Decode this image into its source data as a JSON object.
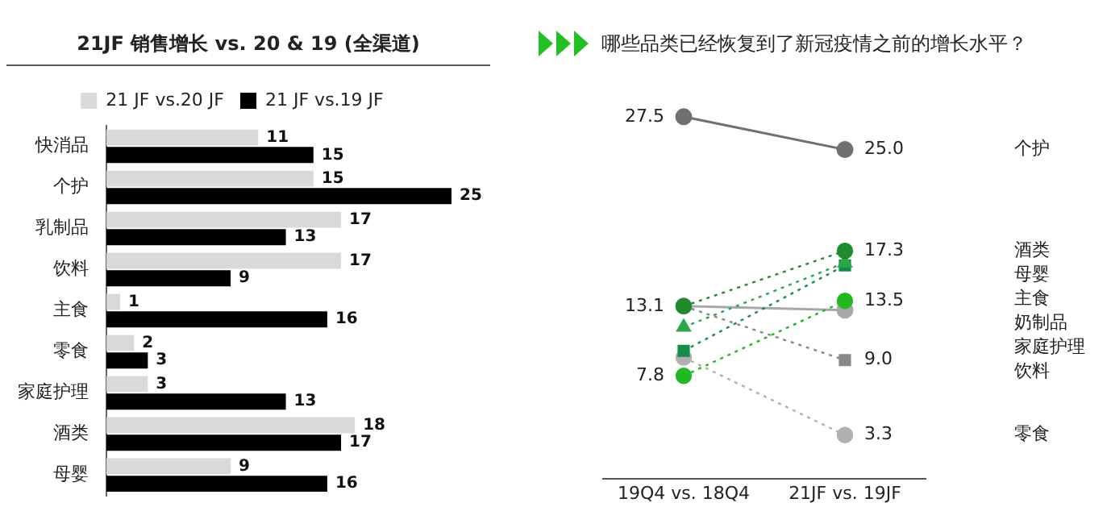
{
  "chart_data": [
    {
      "type": "bar",
      "title": "21JF 销售增长 vs. 20 & 19 (全渠道)",
      "orientation": "horizontal",
      "categories": [
        "快消品",
        "个护",
        "乳制品",
        "饮料",
        "主食",
        "零食",
        "家庭护理",
        "酒类",
        "母婴"
      ],
      "series": [
        {
          "name": "21 JF vs.20 JF",
          "color": "#d9d9d9",
          "values": [
            11,
            15,
            17,
            17,
            1,
            2,
            3,
            18,
            9
          ]
        },
        {
          "name": "21 JF vs.19 JF",
          "color": "#000000",
          "values": [
            15,
            25,
            13,
            9,
            16,
            3,
            13,
            17,
            16
          ]
        }
      ],
      "data_labels": true,
      "legend": "top",
      "grid": false,
      "tick_labels": "y"
    },
    {
      "type": "line",
      "title": "哪些品类已经恢复到了新冠疫情之前的增长水平？",
      "categories": [
        "19Q4 vs. 18Q4",
        "21JF vs. 19JF"
      ],
      "series": [
        {
          "name": "个护",
          "color": "#707070",
          "values": [
            27.5,
            25.0
          ],
          "value_labels": [
            "27.5",
            "25.0"
          ],
          "marker": "circle",
          "line_style": "solid"
        },
        {
          "name": "酒类",
          "color": "#1f8a2e",
          "values": [
            13.1,
            17.3
          ],
          "value_labels": [
            "13.1",
            "17.3"
          ],
          "marker": "circle",
          "line_style": "dotted"
        },
        {
          "name": "母婴",
          "color": "#2aa84a",
          "values": [
            11.5,
            16.4
          ],
          "marker": "triangle",
          "line_style": "dotted"
        },
        {
          "name": "主食",
          "color": "#168c4c",
          "values": [
            9.7,
            16.2
          ],
          "marker": "square",
          "line_style": "dotted"
        },
        {
          "name": "奶制品",
          "color": "#22b822",
          "values": [
            7.8,
            13.5
          ],
          "value_labels": [
            "7.8",
            "13.5"
          ],
          "marker": "circle",
          "line_style": "dotted"
        },
        {
          "name": "家庭护理",
          "color": "#a8a8a8",
          "values": [
            13.1,
            12.8
          ],
          "marker": "circle",
          "line_style": "solid"
        },
        {
          "name": "饮料",
          "color": "#888888",
          "values": [
            13.1,
            9.0
          ],
          "value_labels": [
            null,
            "9.0"
          ],
          "marker": "square",
          "line_style": "dotted"
        },
        {
          "name": "零食",
          "color": "#b0b0b0",
          "values": [
            9.2,
            3.3
          ],
          "value_labels": [
            null,
            "3.3"
          ],
          "marker": "circle",
          "line_style": "dotted"
        }
      ],
      "grid": false,
      "legend": false,
      "tick_labels": "x"
    }
  ]
}
